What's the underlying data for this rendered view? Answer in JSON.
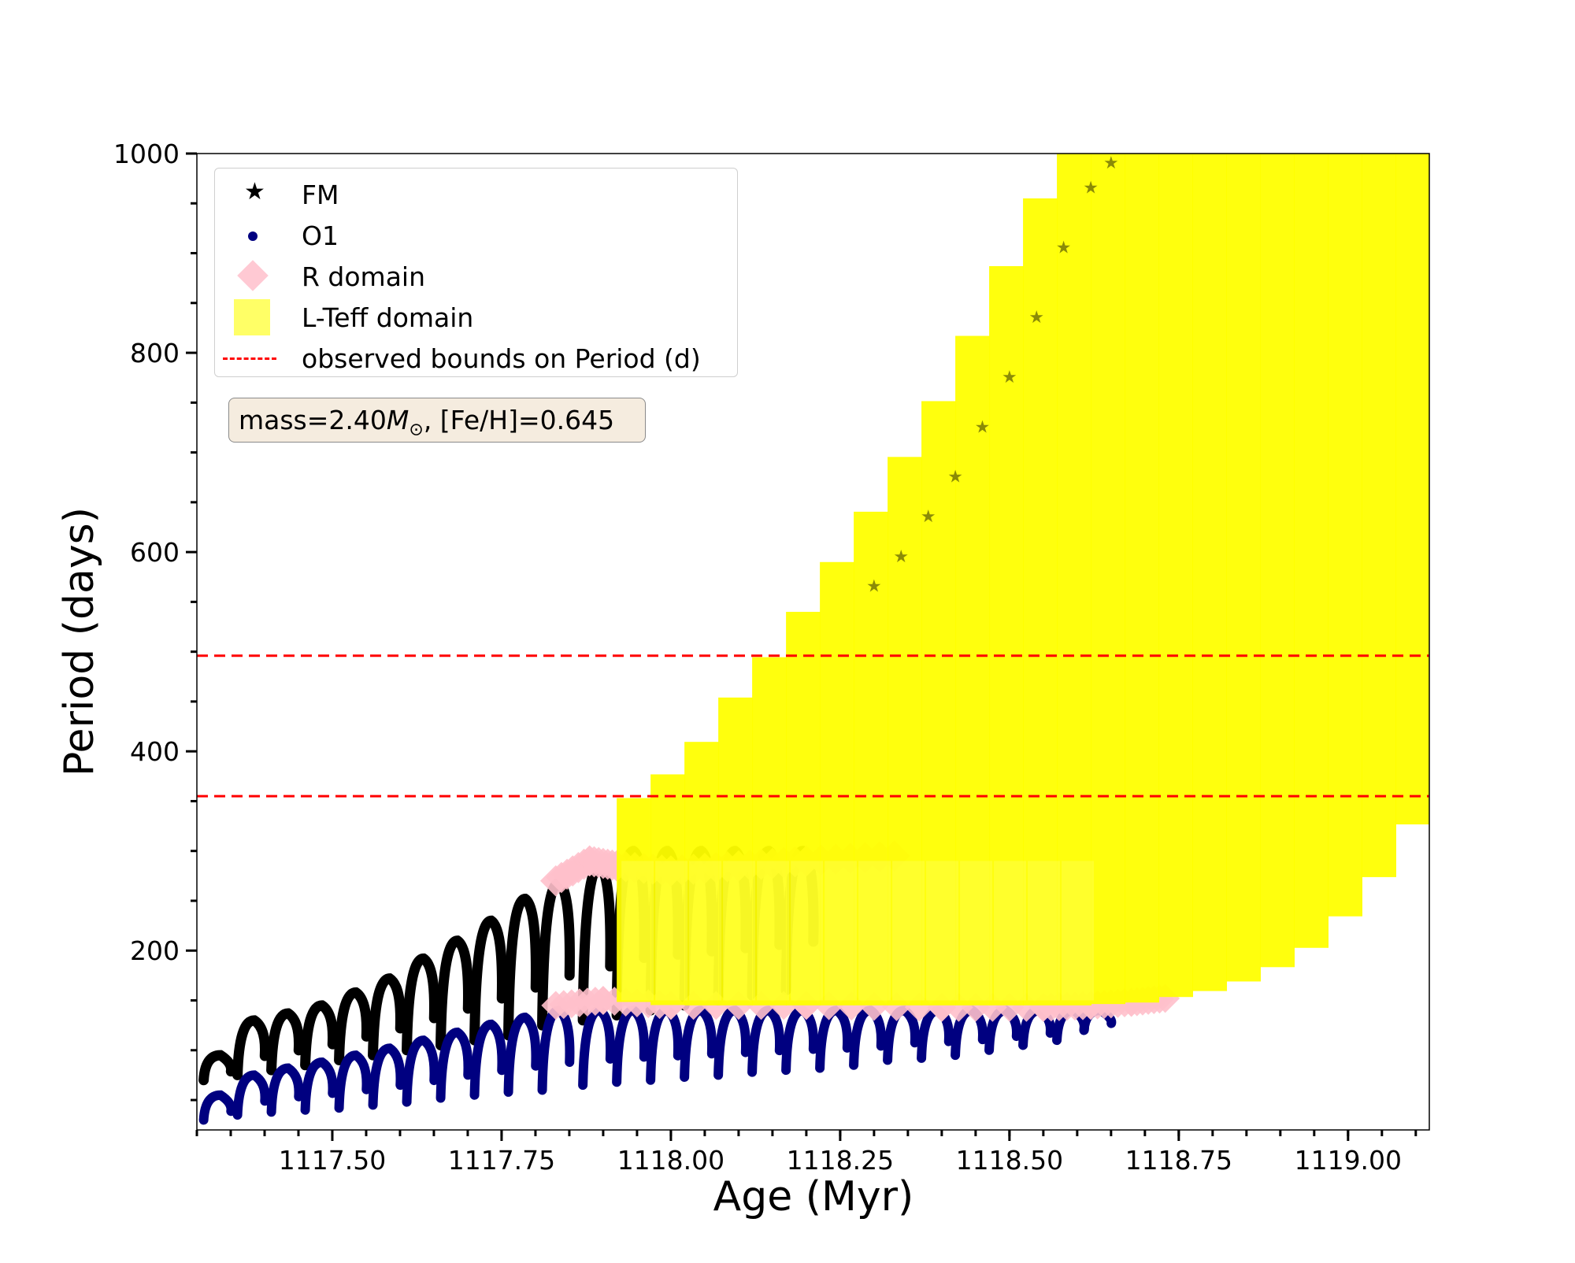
{
  "chart_data": {
    "type": "scatter",
    "xlabel": "Age (Myr)",
    "ylabel": "Period (days)",
    "xlim": [
      1117.3,
      1119.12
    ],
    "ylim": [
      20,
      1000
    ],
    "x_ticks": [
      1117.5,
      1117.75,
      1118.0,
      1118.25,
      1118.5,
      1118.75,
      1119.0
    ],
    "x_tick_labels": [
      "1117.50",
      "1117.75",
      "1118.00",
      "1118.25",
      "1118.50",
      "1118.75",
      "1119.00"
    ],
    "y_ticks": [
      200,
      400,
      600,
      800,
      1000
    ],
    "y_tick_labels": [
      "200",
      "400",
      "600",
      "800",
      "1000"
    ],
    "legend_placement": "upper-left",
    "annotation": {
      "prefix": "mass=2.40",
      "symbol": "M",
      "subscript": "⊙",
      "suffix": ", [Fe/H]=0.645"
    },
    "observed_bounds": [
      355,
      496
    ],
    "series": [
      {
        "name": "FM",
        "marker": "star",
        "color": "#000000",
        "cycles": [
          [
            1117.31,
            70,
            95
          ],
          [
            1117.36,
            75,
            130
          ],
          [
            1117.41,
            80,
            137
          ],
          [
            1117.46,
            85,
            145
          ],
          [
            1117.51,
            90,
            158
          ],
          [
            1117.56,
            95,
            172
          ],
          [
            1117.61,
            100,
            192
          ],
          [
            1117.66,
            105,
            210
          ],
          [
            1117.71,
            110,
            230
          ],
          [
            1117.76,
            115,
            252
          ],
          [
            1117.81,
            125,
            268
          ],
          [
            1117.87,
            130,
            285
          ],
          [
            1117.92,
            135,
            300
          ],
          [
            1117.97,
            140,
            300
          ],
          [
            1118.02,
            145,
            300
          ],
          [
            1118.07,
            150,
            300
          ],
          [
            1118.12,
            155,
            300
          ],
          [
            1118.17,
            160,
            300
          ]
        ],
        "upper_points": [
          [
            1118.3,
            560
          ],
          [
            1118.34,
            590
          ],
          [
            1118.38,
            630
          ],
          [
            1118.42,
            670
          ],
          [
            1118.46,
            720
          ],
          [
            1118.5,
            770
          ],
          [
            1118.54,
            830
          ],
          [
            1118.58,
            900
          ],
          [
            1118.62,
            960
          ],
          [
            1118.65,
            985
          ]
        ]
      },
      {
        "name": "O1",
        "marker": "circle",
        "color": "#000080",
        "cycles": [
          [
            1117.31,
            30,
            55
          ],
          [
            1117.36,
            35,
            75
          ],
          [
            1117.41,
            38,
            82
          ],
          [
            1117.46,
            40,
            88
          ],
          [
            1117.51,
            42,
            95
          ],
          [
            1117.56,
            45,
            102
          ],
          [
            1117.61,
            48,
            110
          ],
          [
            1117.66,
            52,
            118
          ],
          [
            1117.71,
            55,
            126
          ],
          [
            1117.76,
            58,
            133
          ],
          [
            1117.81,
            60,
            140
          ],
          [
            1117.87,
            65,
            140
          ],
          [
            1117.92,
            68,
            140
          ],
          [
            1117.97,
            70,
            140
          ],
          [
            1118.02,
            73,
            140
          ],
          [
            1118.07,
            75,
            140
          ],
          [
            1118.12,
            78,
            140
          ],
          [
            1118.17,
            80,
            140
          ],
          [
            1118.22,
            82,
            140
          ],
          [
            1118.27,
            85,
            140
          ],
          [
            1118.32,
            90,
            140
          ],
          [
            1118.37,
            92,
            140
          ],
          [
            1118.42,
            95,
            140
          ],
          [
            1118.47,
            100,
            140
          ],
          [
            1118.52,
            105,
            140
          ],
          [
            1118.57,
            110,
            140
          ],
          [
            1118.61,
            120,
            140
          ]
        ]
      },
      {
        "name": "R domain",
        "marker": "diamond",
        "color": "#ffc0cb",
        "upper_band": [
          [
            1117.83,
            270
          ],
          [
            1117.88,
            290
          ],
          [
            1117.92,
            285
          ],
          [
            1118.0,
            280
          ],
          [
            1118.1,
            285
          ],
          [
            1118.2,
            290
          ],
          [
            1118.33,
            295
          ]
        ],
        "lower_band": [
          [
            1117.83,
            145
          ],
          [
            1117.9,
            150
          ],
          [
            1118.0,
            145
          ],
          [
            1118.2,
            145
          ],
          [
            1118.4,
            143
          ],
          [
            1118.55,
            143
          ],
          [
            1118.62,
            145
          ],
          [
            1118.68,
            148
          ],
          [
            1118.73,
            152
          ]
        ]
      },
      {
        "name": "L-Teff domain",
        "marker": "square",
        "color": "#ffff00",
        "upper_edge": [
          [
            1117.92,
            350
          ],
          [
            1117.96,
            355
          ],
          [
            1118.0,
            380
          ],
          [
            1118.04,
            405
          ],
          [
            1118.09,
            450
          ],
          [
            1118.14,
            490
          ],
          [
            1118.19,
            535
          ],
          [
            1118.24,
            585
          ],
          [
            1118.29,
            635
          ],
          [
            1118.34,
            690
          ],
          [
            1118.39,
            745
          ],
          [
            1118.44,
            810
          ],
          [
            1118.49,
            880
          ],
          [
            1118.54,
            950
          ],
          [
            1118.59,
            1000
          ],
          [
            1119.12,
            1000
          ]
        ],
        "lower_edge": [
          [
            1117.92,
            150
          ],
          [
            1118.0,
            145
          ],
          [
            1118.2,
            145
          ],
          [
            1118.4,
            145
          ],
          [
            1118.6,
            145
          ],
          [
            1118.7,
            148
          ],
          [
            1118.8,
            160
          ],
          [
            1118.86,
            172
          ],
          [
            1118.9,
            185
          ],
          [
            1118.94,
            200
          ],
          [
            1118.98,
            222
          ],
          [
            1119.02,
            255
          ],
          [
            1119.06,
            285
          ],
          [
            1119.09,
            320
          ],
          [
            1119.12,
            360
          ]
        ]
      },
      {
        "name": "observed bounds on Period (d)",
        "marker": "dashed-line",
        "color": "#ff0000"
      }
    ]
  }
}
